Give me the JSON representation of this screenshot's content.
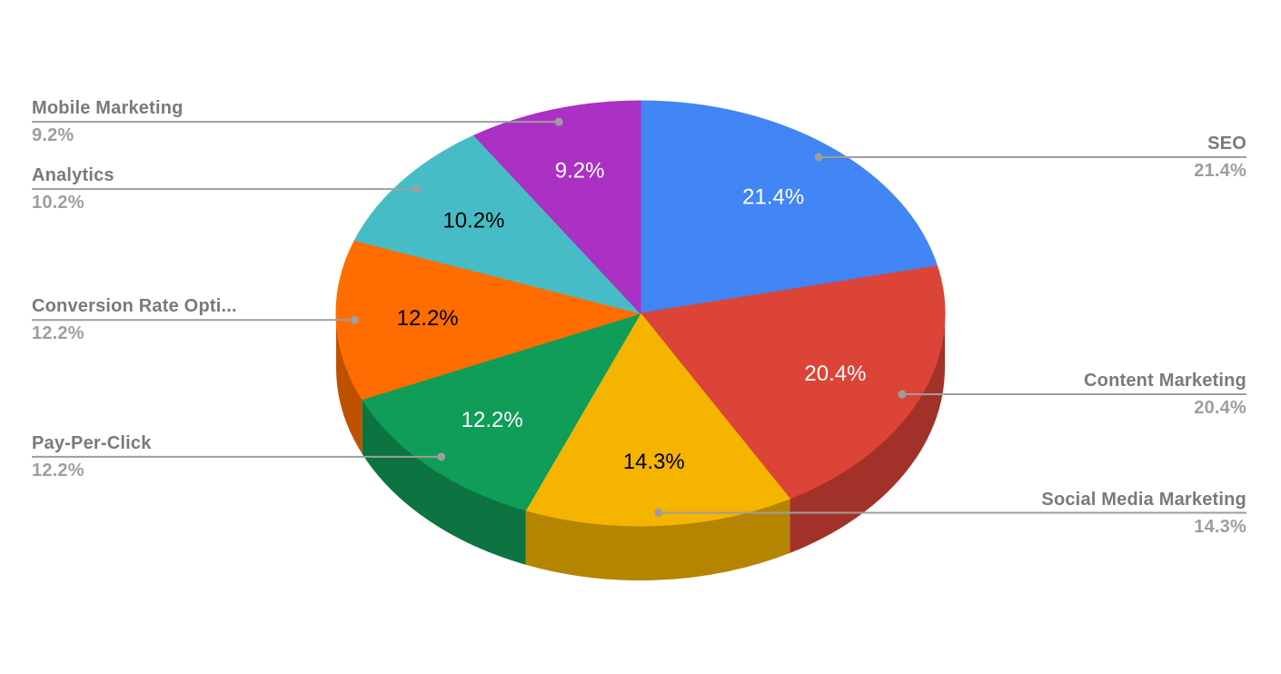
{
  "chart_data": {
    "type": "pie",
    "is3d": true,
    "title": "",
    "start_angle_deg": -90,
    "direction": "clockwise",
    "labels_inside": "percent",
    "legend_position": "outside-callouts",
    "slices": [
      {
        "label": "SEO",
        "value": 21.4,
        "pct": "21.4%",
        "color": "#4285F4",
        "pct_text_color": "#ffffff"
      },
      {
        "label": "Content Marketing",
        "value": 20.4,
        "pct": "20.4%",
        "color": "#DB4437",
        "pct_text_color": "#ffffff"
      },
      {
        "label": "Social Media Marketing",
        "value": 14.3,
        "pct": "14.3%",
        "color": "#F4B400",
        "pct_text_color": "#000000"
      },
      {
        "label": "Pay-Per-Click",
        "value": 12.2,
        "pct": "12.2%",
        "color": "#0F9D58",
        "pct_text_color": "#ffffff"
      },
      {
        "label": "Conversion Rate Opti...",
        "value": 12.2,
        "pct": "12.2%",
        "color": "#FF6D00",
        "pct_text_color": "#000000"
      },
      {
        "label": "Analytics",
        "value": 10.2,
        "pct": "10.2%",
        "color": "#46BDC6",
        "pct_text_color": "#000000"
      },
      {
        "label": "Mobile Marketing",
        "value": 9.2,
        "pct": "9.2%",
        "color": "#AB30C4",
        "pct_text_color": "#ffffff"
      }
    ]
  },
  "style": {
    "background": "#ffffff",
    "callout_title_color": "#7a7a7a",
    "callout_value_color": "#9e9e9e",
    "callout_line_color": "#9e9e9e",
    "callout_dot_color": "#9e9e9e",
    "side_darken_factor": 0.74
  }
}
